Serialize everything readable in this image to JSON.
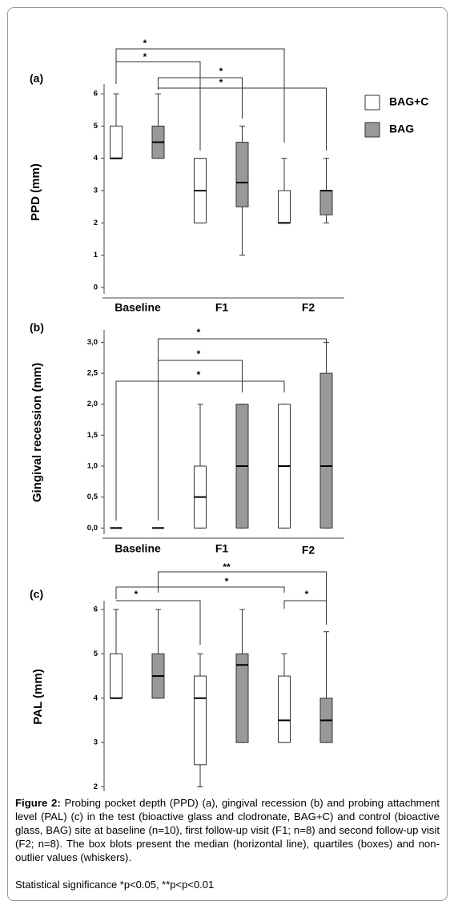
{
  "chart_data": [
    {
      "type": "box",
      "label": "(a)",
      "y_label": "PPD (mm)",
      "categories": [
        "Baseline",
        "F1",
        "F2"
      ],
      "series": [
        {
          "name": "BAG+C",
          "color": "#ffffff",
          "values": [
            {
              "min": 4,
              "q1": 4,
              "median": 4,
              "q3": 5,
              "max": 6
            },
            {
              "min": 2,
              "q1": 2,
              "median": 3,
              "q3": 4,
              "max": 4
            },
            {
              "min": 2,
              "q1": 2,
              "median": 2,
              "q3": 3,
              "max": 4
            }
          ]
        },
        {
          "name": "BAG",
          "color": "#999999",
          "values": [
            {
              "min": 4,
              "q1": 4,
              "median": 4.5,
              "q3": 5,
              "max": 6
            },
            {
              "min": 1,
              "q1": 2.5,
              "median": 3.25,
              "q3": 4.5,
              "max": 5
            },
            {
              "min": 2,
              "q1": 2.25,
              "median": 3,
              "q3": 3,
              "max": 4
            }
          ]
        }
      ],
      "ylim": [
        -0.2,
        6.3
      ],
      "yticks": [
        0,
        1,
        2,
        3,
        4,
        5,
        6
      ],
      "annotations": [
        "*",
        "*",
        "*",
        "*"
      ]
    },
    {
      "type": "box",
      "label": "(b)",
      "y_label": "Gingival recession (mm)",
      "categories": [
        "Baseline",
        "F1",
        "F2"
      ],
      "series": [
        {
          "color": "#ffffff",
          "values": [
            {
              "min": 0,
              "q1": 0,
              "median": 0,
              "q3": 0,
              "max": 0
            },
            {
              "min": 0,
              "q1": 0,
              "median": 0.5,
              "q3": 1,
              "max": 2
            },
            {
              "min": 0,
              "q1": 0,
              "median": 1,
              "q3": 2,
              "max": 2
            }
          ]
        },
        {
          "color": "#999999",
          "values": [
            {
              "min": 0,
              "q1": 0,
              "median": 0,
              "q3": 0,
              "max": 0
            },
            {
              "min": 0,
              "q1": 0,
              "median": 1,
              "q3": 2,
              "max": 2
            },
            {
              "min": 0,
              "q1": 0,
              "median": 1,
              "q3": 2.5,
              "max": 3
            }
          ]
        }
      ],
      "ylim": [
        -0.1,
        3.2
      ],
      "yticks": [
        {
          "value": 0,
          "label": "0,0"
        },
        {
          "value": 0.5,
          "label": "0,5"
        },
        {
          "value": 1,
          "label": "1,0"
        },
        {
          "value": 1.5,
          "label": "1,5"
        },
        {
          "value": 2,
          "label": "2,0"
        },
        {
          "value": 2.5,
          "label": "2,5"
        },
        {
          "value": 3,
          "label": "3,0"
        }
      ],
      "annotations": [
        "*",
        "*",
        "*"
      ]
    },
    {
      "type": "box",
      "label": "(c)",
      "y_label": "PAL (mm)",
      "categories": [
        null,
        null,
        null
      ],
      "series": [
        {
          "color": "#ffffff",
          "values": [
            {
              "min": 4,
              "q1": 4,
              "median": 4,
              "q3": 5,
              "max": 6
            },
            {
              "min": 2,
              "q1": 2.5,
              "median": 4,
              "q3": 4.5,
              "max": 5
            },
            {
              "min": 3,
              "q1": 3,
              "median": 3.5,
              "q3": 4.5,
              "max": 5
            }
          ]
        },
        {
          "color": "#999999",
          "values": [
            {
              "min": 4,
              "q1": 4,
              "median": 4.5,
              "q3": 5,
              "max": 6
            },
            {
              "min": 3,
              "q1": 3,
              "median": 4.75,
              "q3": 5,
              "max": 6
            },
            {
              "min": 3,
              "q1": 3,
              "median": 3.5,
              "q3": 4,
              "max": 5.5
            }
          ]
        }
      ],
      "ylim": [
        1.9,
        6.2
      ],
      "yticks": [
        2,
        3,
        4,
        5,
        6
      ],
      "annotations": [
        "**",
        "*",
        "*",
        "*"
      ]
    }
  ],
  "caption": {
    "label": "Figure 2:",
    "text": "Probing pocket depth (PPD) (a), gingival recession (b) and probing attachment level (PAL) (c) in the test (bioactive glass and clodronate, BAG+C) and control (bioactive glass, BAG) site at baseline (n=10), first follow-up visit (F1; n=8) and second follow-up visit (F2; n=8). The box blots present the median (horizontal line), quartiles (boxes) and non-outlier values (whiskers).",
    "significance": "Statistical significance *p<0.05, **p<p<0.01"
  }
}
